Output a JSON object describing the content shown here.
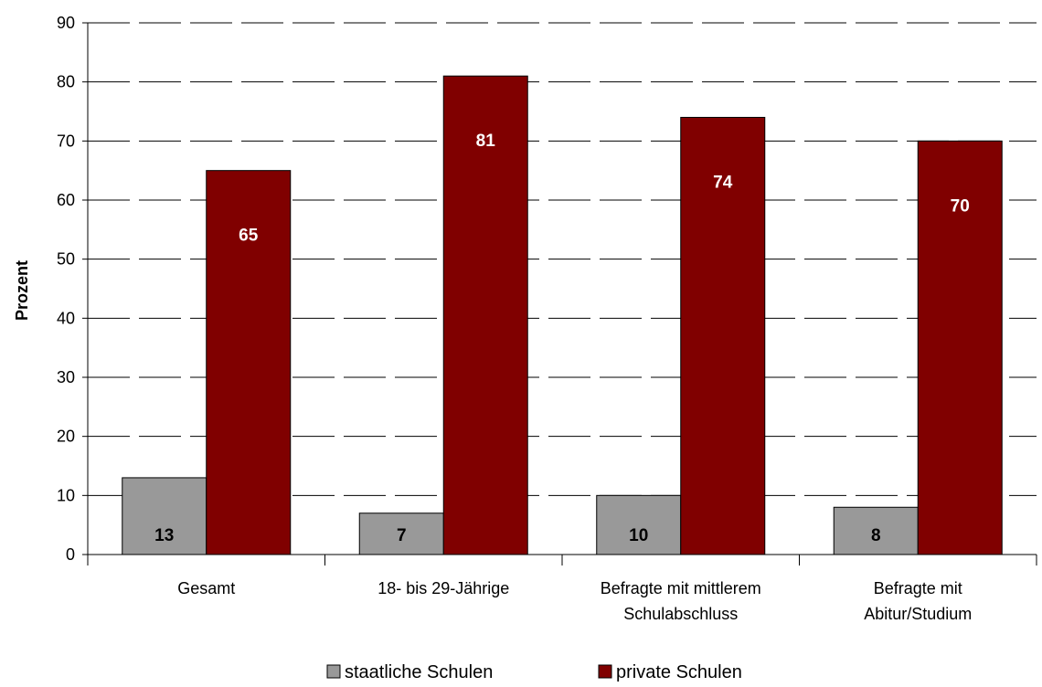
{
  "chart_data": {
    "type": "bar",
    "categories": [
      [
        "Gesamt"
      ],
      [
        "18- bis 29-Jährige"
      ],
      [
        "Befragte mit mittlerem",
        "Schulabschluss"
      ],
      [
        "Befragte mit",
        "Abitur/Studium"
      ]
    ],
    "series": [
      {
        "name": "staatliche Schulen",
        "color": "#999999",
        "label_color": "#000000",
        "values": [
          13,
          7,
          10,
          8
        ]
      },
      {
        "name": "private Schulen",
        "color": "#800000",
        "label_color": "#ffffff",
        "values": [
          65,
          81,
          74,
          70
        ]
      }
    ],
    "ylabel": "Prozent",
    "ylim": [
      0,
      90
    ],
    "yticks": [
      0,
      10,
      20,
      30,
      40,
      50,
      60,
      70,
      80,
      90
    ],
    "grid": true,
    "legend": "bottom"
  }
}
